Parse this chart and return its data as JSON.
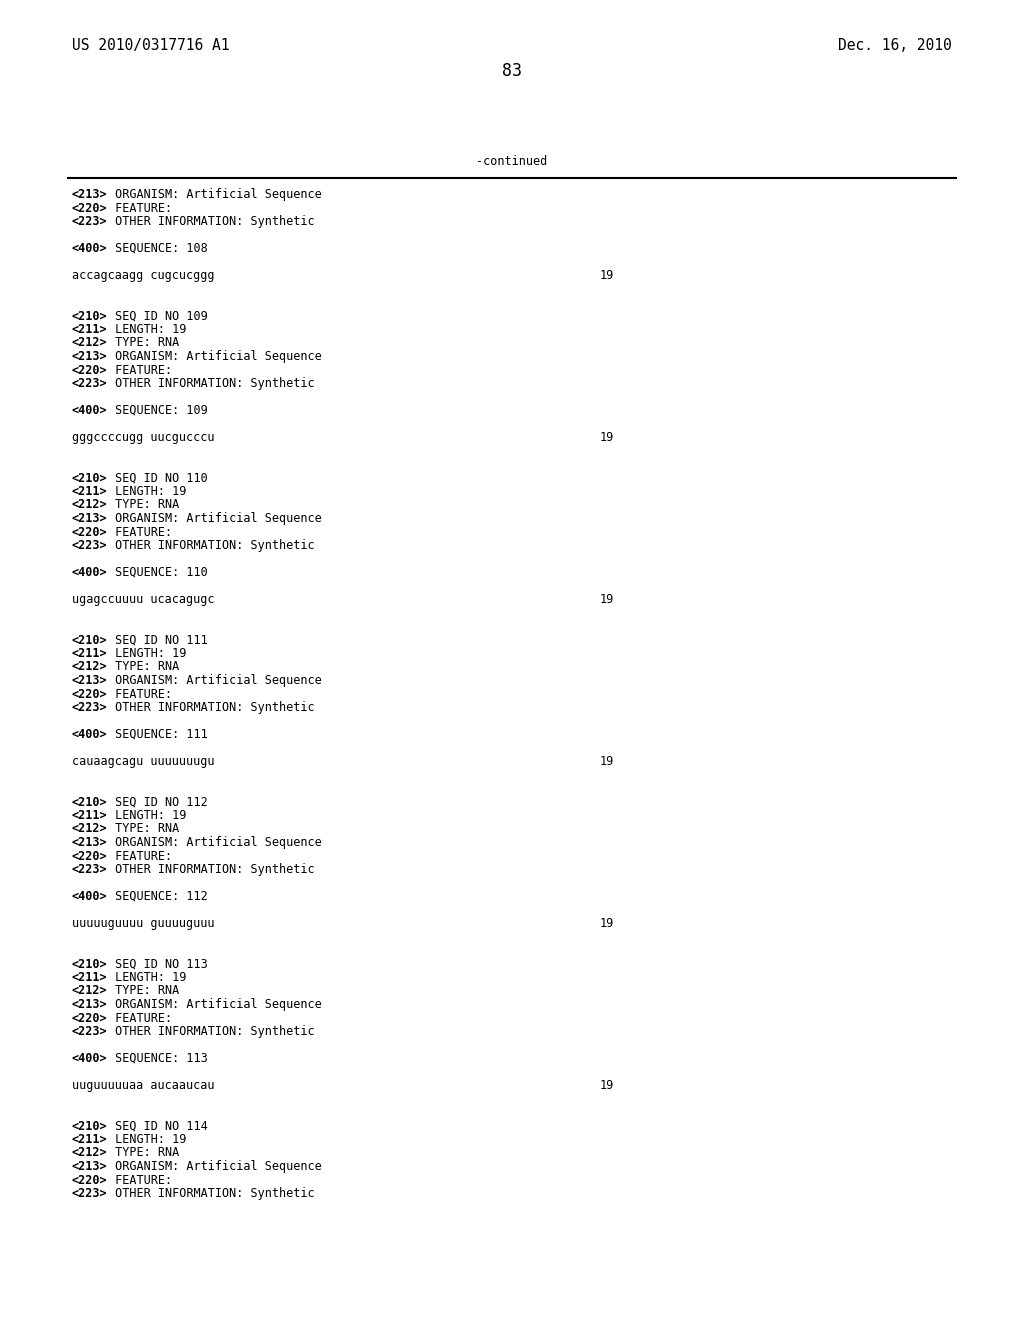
{
  "header_left": "US 2010/0317716 A1",
  "header_right": "Dec. 16, 2010",
  "page_number": "83",
  "continued_label": "-continued",
  "background_color": "#ffffff",
  "text_color": "#000000",
  "font_size": 8.5,
  "header_font_size": 10.5,
  "page_num_font_size": 12,
  "content_lines": [
    "<213> ORGANISM: Artificial Sequence",
    "<220> FEATURE:",
    "<223> OTHER INFORMATION: Synthetic",
    "",
    "<400> SEQUENCE: 108",
    "",
    "accagcaagg cugcucggg|19",
    "",
    "",
    "<210> SEQ ID NO 109",
    "<211> LENGTH: 19",
    "<212> TYPE: RNA",
    "<213> ORGANISM: Artificial Sequence",
    "<220> FEATURE:",
    "<223> OTHER INFORMATION: Synthetic",
    "",
    "<400> SEQUENCE: 109",
    "",
    "gggccccugg uucgucccu|19",
    "",
    "",
    "<210> SEQ ID NO 110",
    "<211> LENGTH: 19",
    "<212> TYPE: RNA",
    "<213> ORGANISM: Artificial Sequence",
    "<220> FEATURE:",
    "<223> OTHER INFORMATION: Synthetic",
    "",
    "<400> SEQUENCE: 110",
    "",
    "ugagccuuuu ucacagugc|19",
    "",
    "",
    "<210> SEQ ID NO 111",
    "<211> LENGTH: 19",
    "<212> TYPE: RNA",
    "<213> ORGANISM: Artificial Sequence",
    "<220> FEATURE:",
    "<223> OTHER INFORMATION: Synthetic",
    "",
    "<400> SEQUENCE: 111",
    "",
    "cauaagcagu uuuuuuugu|19",
    "",
    "",
    "<210> SEQ ID NO 112",
    "<211> LENGTH: 19",
    "<212> TYPE: RNA",
    "<213> ORGANISM: Artificial Sequence",
    "<220> FEATURE:",
    "<223> OTHER INFORMATION: Synthetic",
    "",
    "<400> SEQUENCE: 112",
    "",
    "uuuuuguuuu guuuuguuu|19",
    "",
    "",
    "<210> SEQ ID NO 113",
    "<211> LENGTH: 19",
    "<212> TYPE: RNA",
    "<213> ORGANISM: Artificial Sequence",
    "<220> FEATURE:",
    "<223> OTHER INFORMATION: Synthetic",
    "",
    "<400> SEQUENCE: 113",
    "",
    "uuguuuuuaa aucaaucau|19",
    "",
    "",
    "<210> SEQ ID NO 114",
    "<211> LENGTH: 19",
    "<212> TYPE: RNA",
    "<213> ORGANISM: Artificial Sequence",
    "<220> FEATURE:",
    "<223> OTHER INFORMATION: Synthetic"
  ],
  "bold_tags": [
    "<220>",
    "<400>",
    "<210>",
    "<211>",
    "<212>",
    "<213>",
    "<223>"
  ]
}
